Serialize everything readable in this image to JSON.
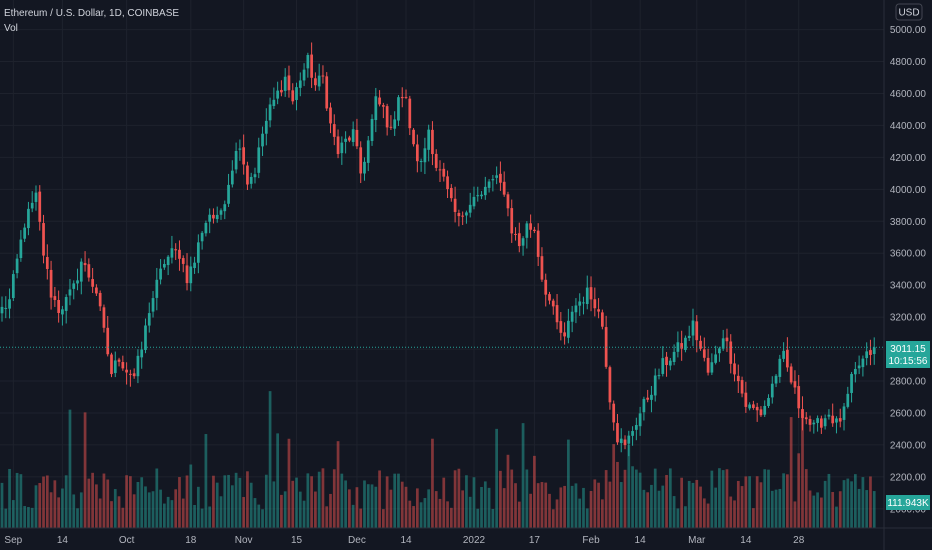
{
  "legend": {
    "symbol": "Ethereum / U.S. Dollar, 1D, COINBASE",
    "volume": "Vol"
  },
  "currency_button": "USD",
  "price_badge": {
    "price": "3011.15",
    "countdown": "10:15:56"
  },
  "volume_badge": "111.943K",
  "colors": {
    "background": "#131722",
    "grid": "#1e222d",
    "up": "#26a69a",
    "down": "#ef5350",
    "text": "#b2b5be",
    "last_line": "#26a69a"
  },
  "chart_data": {
    "type": "candlestick",
    "symbol": "ETH/USD",
    "interval": "1D",
    "y_ticks": [
      "2000.00",
      "2200.00",
      "2400.00",
      "2600.00",
      "2800.00",
      "3000.00",
      "3200.00",
      "3400.00",
      "3600.00",
      "3800.00",
      "4000.00",
      "4200.00",
      "4400.00",
      "4600.00",
      "4800.00",
      "5000.00"
    ],
    "y_tick_values": [
      2000,
      2200,
      2400,
      2600,
      2800,
      3000,
      3200,
      3400,
      3600,
      3800,
      4000,
      4200,
      4400,
      4600,
      4800,
      5000
    ],
    "ylim": [
      1880,
      5060
    ],
    "x_ticks": [
      "Sep",
      "14",
      "Oct",
      "18",
      "Nov",
      "15",
      "Dec",
      "14",
      "2022",
      "17",
      "Feb",
      "14",
      "Mar",
      "14",
      "28"
    ],
    "x_tick_dates": [
      "2021-09-01",
      "2021-09-14",
      "2021-10-01",
      "2021-10-18",
      "2021-11-01",
      "2021-11-15",
      "2021-12-01",
      "2021-12-14",
      "2022-01-01",
      "2022-01-17",
      "2022-02-01",
      "2022-02-14",
      "2022-03-01",
      "2022-03-14",
      "2022-03-28"
    ],
    "start_date": "2021-08-29",
    "last_price": 3011.15,
    "close_path": [
      [
        0,
        3250
      ],
      [
        2,
        3300
      ],
      [
        4,
        3550
      ],
      [
        6,
        3790
      ],
      [
        9,
        3950
      ],
      [
        11,
        3600
      ],
      [
        13,
        3350
      ],
      [
        15,
        3250
      ],
      [
        17,
        3300
      ],
      [
        19,
        3380
      ],
      [
        21,
        3550
      ],
      [
        23,
        3460
      ],
      [
        25,
        3360
      ],
      [
        27,
        3100
      ],
      [
        29,
        2850
      ],
      [
        31,
        2950
      ],
      [
        33,
        2870
      ],
      [
        35,
        2830
      ],
      [
        37,
        3000
      ],
      [
        39,
        3250
      ],
      [
        41,
        3400
      ],
      [
        43,
        3550
      ],
      [
        45,
        3600
      ],
      [
        47,
        3600
      ],
      [
        49,
        3450
      ],
      [
        51,
        3550
      ],
      [
        53,
        3750
      ],
      [
        55,
        3850
      ],
      [
        57,
        3800
      ],
      [
        59,
        3950
      ],
      [
        61,
        4150
      ],
      [
        63,
        4300
      ],
      [
        65,
        4050
      ],
      [
        67,
        4120
      ],
      [
        69,
        4350
      ],
      [
        71,
        4500
      ],
      [
        73,
        4600
      ],
      [
        75,
        4700
      ],
      [
        77,
        4550
      ],
      [
        79,
        4700
      ],
      [
        81,
        4800
      ],
      [
        83,
        4650
      ],
      [
        85,
        4700
      ],
      [
        87,
        4400
      ],
      [
        89,
        4230
      ],
      [
        91,
        4300
      ],
      [
        93,
        4350
      ],
      [
        95,
        4100
      ],
      [
        97,
        4300
      ],
      [
        99,
        4550
      ],
      [
        101,
        4500
      ],
      [
        103,
        4350
      ],
      [
        105,
        4600
      ],
      [
        107,
        4550
      ],
      [
        109,
        4250
      ],
      [
        111,
        4150
      ],
      [
        113,
        4380
      ],
      [
        115,
        4150
      ],
      [
        117,
        4050
      ],
      [
        119,
        3900
      ],
      [
        121,
        3800
      ],
      [
        123,
        3900
      ],
      [
        125,
        3950
      ],
      [
        127,
        3950
      ],
      [
        129,
        4050
      ],
      [
        131,
        4050
      ],
      [
        133,
        4000
      ],
      [
        135,
        3750
      ],
      [
        137,
        3650
      ],
      [
        139,
        3770
      ],
      [
        141,
        3750
      ],
      [
        143,
        3450
      ],
      [
        145,
        3300
      ],
      [
        147,
        3150
      ],
      [
        149,
        3050
      ],
      [
        151,
        3250
      ],
      [
        153,
        3300
      ],
      [
        155,
        3350
      ],
      [
        157,
        3300
      ],
      [
        159,
        3150
      ],
      [
        161,
        2700
      ],
      [
        163,
        2450
      ],
      [
        165,
        2380
      ],
      [
        167,
        2500
      ],
      [
        169,
        2600
      ],
      [
        171,
        2700
      ],
      [
        173,
        2800
      ],
      [
        175,
        2900
      ],
      [
        177,
        2950
      ],
      [
        179,
        3000
      ],
      [
        181,
        3050
      ],
      [
        183,
        3150
      ],
      [
        185,
        3000
      ],
      [
        187,
        2850
      ],
      [
        189,
        2950
      ],
      [
        191,
        3100
      ],
      [
        193,
        2950
      ],
      [
        195,
        2800
      ],
      [
        197,
        2650
      ],
      [
        199,
        2620
      ],
      [
        201,
        2600
      ],
      [
        203,
        2700
      ],
      [
        205,
        2850
      ],
      [
        207,
        2950
      ],
      [
        209,
        2800
      ],
      [
        211,
        2650
      ],
      [
        213,
        2570
      ],
      [
        215,
        2500
      ],
      [
        217,
        2550
      ],
      [
        219,
        2600
      ],
      [
        221,
        2530
      ],
      [
        223,
        2600
      ],
      [
        225,
        2800
      ],
      [
        227,
        2900
      ],
      [
        229,
        2950
      ],
      [
        231,
        3011.15
      ]
    ],
    "volume_ylim": [
      0,
      90
    ],
    "volume_badge_value": "111.943K"
  }
}
